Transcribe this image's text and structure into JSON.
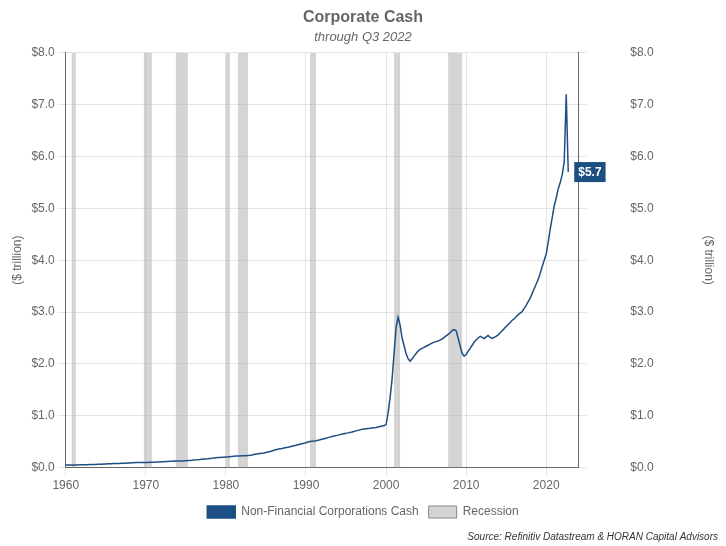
{
  "chart_data": {
    "type": "line",
    "title": "Corporate Cash",
    "subtitle": "through Q3 2022",
    "ylabel": "($ trillion)",
    "y2label": "($ trillion)",
    "xlim": [
      1960,
      2024
    ],
    "xticks": [
      1960,
      1970,
      1980,
      1990,
      2000,
      2010,
      2020
    ],
    "ylim": [
      0,
      8.0
    ],
    "yticks": [
      {
        "value": 0.0,
        "label": "$0.0"
      },
      {
        "value": 1.0,
        "label": "$1.0"
      },
      {
        "value": 2.0,
        "label": "$2.0"
      },
      {
        "value": 3.0,
        "label": "$3.0"
      },
      {
        "value": 4.0,
        "label": "$4.0"
      },
      {
        "value": 5.0,
        "label": "$5.0"
      },
      {
        "value": 6.0,
        "label": "$6.0"
      },
      {
        "value": 7.0,
        "label": "$7.0"
      },
      {
        "value": 8.0,
        "label": "$8.0"
      }
    ],
    "y2lim": [
      0,
      8.0
    ],
    "y2ticks": [
      {
        "value": 0.0,
        "label": "$0.0"
      },
      {
        "value": 1.0,
        "label": "$1.0"
      },
      {
        "value": 2.0,
        "label": "$2.0"
      },
      {
        "value": 3.0,
        "label": "$3.0"
      },
      {
        "value": 4.0,
        "label": "$4.0"
      },
      {
        "value": 5.0,
        "label": "$5.0"
      },
      {
        "value": 6.0,
        "label": "$6.0"
      },
      {
        "value": 7.0,
        "label": "$7.0"
      },
      {
        "value": 8.0,
        "label": "$8.0"
      }
    ],
    "grid": true,
    "legend": "bottom",
    "recessions": {
      "name": "Recession",
      "color": "#b0b0b0",
      "spans": [
        [
          1960.75,
          1961.25
        ],
        [
          1969.75,
          1970.75
        ],
        [
          1973.75,
          1975.25
        ],
        [
          1980.0,
          1980.5
        ],
        [
          1981.5,
          1982.75
        ],
        [
          1990.5,
          1991.25
        ],
        [
          2001.0,
          2001.75
        ],
        [
          2007.75,
          2009.5
        ]
      ]
    },
    "annotations": [
      {
        "text": "$5.7",
        "x": 2022.75,
        "y": 5.7,
        "color": "#ffffff",
        "background": "#1c4f82"
      }
    ],
    "source": "Source: Refinitiv Datastream & HORAN Capital Advisors",
    "x": [
      1960,
      1960.25,
      1960.5,
      1960.75,
      1961,
      1961.25,
      1961.5,
      1961.75,
      1962,
      1962.25,
      1962.5,
      1962.75,
      1963,
      1963.25,
      1963.5,
      1963.75,
      1964,
      1964.25,
      1964.5,
      1964.75,
      1965,
      1965.25,
      1965.5,
      1965.75,
      1966,
      1966.25,
      1966.5,
      1966.75,
      1967,
      1967.25,
      1967.5,
      1967.75,
      1968,
      1968.25,
      1968.5,
      1968.75,
      1969,
      1969.25,
      1969.5,
      1969.75,
      1970,
      1970.25,
      1970.5,
      1970.75,
      1971,
      1971.25,
      1971.5,
      1971.75,
      1972,
      1972.25,
      1972.5,
      1972.75,
      1973,
      1973.25,
      1973.5,
      1973.75,
      1974,
      1974.25,
      1974.5,
      1974.75,
      1975,
      1975.25,
      1975.5,
      1975.75,
      1976,
      1976.25,
      1976.5,
      1976.75,
      1977,
      1977.25,
      1977.5,
      1977.75,
      1978,
      1978.25,
      1978.5,
      1978.75,
      1979,
      1979.25,
      1979.5,
      1979.75,
      1980,
      1980.25,
      1980.5,
      1980.75,
      1981,
      1981.25,
      1981.5,
      1981.75,
      1982,
      1982.25,
      1982.5,
      1982.75,
      1983,
      1983.25,
      1983.5,
      1983.75,
      1984,
      1984.25,
      1984.5,
      1984.75,
      1985,
      1985.25,
      1985.5,
      1985.75,
      1986,
      1986.25,
      1986.5,
      1986.75,
      1987,
      1987.25,
      1987.5,
      1987.75,
      1988,
      1988.25,
      1988.5,
      1988.75,
      1989,
      1989.25,
      1989.5,
      1989.75,
      1990,
      1990.25,
      1990.5,
      1990.75,
      1991,
      1991.25,
      1991.5,
      1991.75,
      1992,
      1992.25,
      1992.5,
      1992.75,
      1993,
      1993.25,
      1993.5,
      1993.75,
      1994,
      1994.25,
      1994.5,
      1994.75,
      1995,
      1995.25,
      1995.5,
      1995.75,
      1996,
      1996.25,
      1996.5,
      1996.75,
      1997,
      1997.25,
      1997.5,
      1997.75,
      1998,
      1998.25,
      1998.5,
      1998.75,
      1999,
      1999.25,
      1999.5,
      1999.75,
      2000,
      2000.25,
      2000.5,
      2000.75,
      2001,
      2001.25,
      2001.5,
      2001.75,
      2002,
      2002.25,
      2002.5,
      2002.75,
      2003,
      2003.25,
      2003.5,
      2003.75,
      2004,
      2004.25,
      2004.5,
      2004.75,
      2005,
      2005.25,
      2005.5,
      2005.75,
      2006,
      2006.25,
      2006.5,
      2006.75,
      2007,
      2007.25,
      2007.5,
      2007.75,
      2008,
      2008.25,
      2008.5,
      2008.75,
      2009,
      2009.25,
      2009.5,
      2009.75,
      2010,
      2010.25,
      2010.5,
      2010.75,
      2011,
      2011.25,
      2011.5,
      2011.75,
      2012,
      2012.25,
      2012.5,
      2012.75,
      2013,
      2013.25,
      2013.5,
      2013.75,
      2014,
      2014.25,
      2014.5,
      2014.75,
      2015,
      2015.25,
      2015.5,
      2015.75,
      2016,
      2016.25,
      2016.5,
      2016.75,
      2017,
      2017.25,
      2017.5,
      2017.75,
      2018,
      2018.25,
      2018.5,
      2018.75,
      2019,
      2019.25,
      2019.5,
      2019.75,
      2020,
      2020.25,
      2020.5,
      2020.75,
      2021,
      2021.25,
      2021.5,
      2021.75,
      2022,
      2022.25,
      2022.5,
      2022.75
    ],
    "series": [
      {
        "name": "Non-Financial Corporations Cash",
        "color": "#1c4f82",
        "values": [
          0.048,
          0.049,
          0.05,
          0.05,
          0.05,
          0.051,
          0.052,
          0.053,
          0.054,
          0.055,
          0.056,
          0.057,
          0.058,
          0.059,
          0.06,
          0.061,
          0.063,
          0.064,
          0.066,
          0.068,
          0.07,
          0.072,
          0.074,
          0.076,
          0.077,
          0.078,
          0.079,
          0.08,
          0.082,
          0.084,
          0.086,
          0.088,
          0.09,
          0.092,
          0.094,
          0.096,
          0.097,
          0.098,
          0.098,
          0.099,
          0.099,
          0.1,
          0.101,
          0.102,
          0.104,
          0.106,
          0.108,
          0.11,
          0.113,
          0.115,
          0.118,
          0.12,
          0.122,
          0.124,
          0.125,
          0.126,
          0.127,
          0.128,
          0.129,
          0.13,
          0.132,
          0.135,
          0.138,
          0.141,
          0.145,
          0.149,
          0.153,
          0.156,
          0.16,
          0.164,
          0.167,
          0.17,
          0.174,
          0.178,
          0.183,
          0.188,
          0.193,
          0.196,
          0.199,
          0.201,
          0.204,
          0.207,
          0.211,
          0.215,
          0.219,
          0.222,
          0.224,
          0.226,
          0.227,
          0.228,
          0.229,
          0.231,
          0.238,
          0.245,
          0.253,
          0.261,
          0.269,
          0.274,
          0.279,
          0.283,
          0.29,
          0.3,
          0.31,
          0.32,
          0.334,
          0.344,
          0.354,
          0.362,
          0.368,
          0.378,
          0.386,
          0.393,
          0.402,
          0.412,
          0.421,
          0.43,
          0.44,
          0.45,
          0.46,
          0.47,
          0.48,
          0.495,
          0.505,
          0.51,
          0.513,
          0.518,
          0.527,
          0.537,
          0.548,
          0.558,
          0.568,
          0.578,
          0.588,
          0.598,
          0.608,
          0.617,
          0.626,
          0.636,
          0.646,
          0.654,
          0.662,
          0.67,
          0.679,
          0.687,
          0.696,
          0.708,
          0.718,
          0.728,
          0.738,
          0.745,
          0.751,
          0.756,
          0.76,
          0.765,
          0.77,
          0.775,
          0.782,
          0.792,
          0.802,
          0.812,
          0.83,
          1.05,
          1.35,
          1.7,
          2.2,
          2.7,
          2.9,
          2.75,
          2.5,
          2.35,
          2.2,
          2.1,
          2.05,
          2.1,
          2.15,
          2.2,
          2.25,
          2.28,
          2.3,
          2.32,
          2.34,
          2.36,
          2.38,
          2.4,
          2.42,
          2.43,
          2.44,
          2.46,
          2.48,
          2.51,
          2.54,
          2.57,
          2.6,
          2.64,
          2.66,
          2.64,
          2.5,
          2.35,
          2.2,
          2.15,
          2.18,
          2.24,
          2.3,
          2.36,
          2.42,
          2.46,
          2.5,
          2.53,
          2.51,
          2.49,
          2.52,
          2.55,
          2.51,
          2.49,
          2.51,
          2.53,
          2.56,
          2.6,
          2.64,
          2.68,
          2.72,
          2.76,
          2.8,
          2.84,
          2.87,
          2.91,
          2.95,
          2.98,
          3.01,
          3.07,
          3.13,
          3.2,
          3.27,
          3.36,
          3.45,
          3.54,
          3.63,
          3.75,
          3.88,
          4.0,
          4.12,
          4.35,
          4.6,
          4.82,
          5.05,
          5.2,
          5.38,
          5.5,
          5.65,
          5.9,
          7.2,
          5.7
        ]
      }
    ]
  }
}
